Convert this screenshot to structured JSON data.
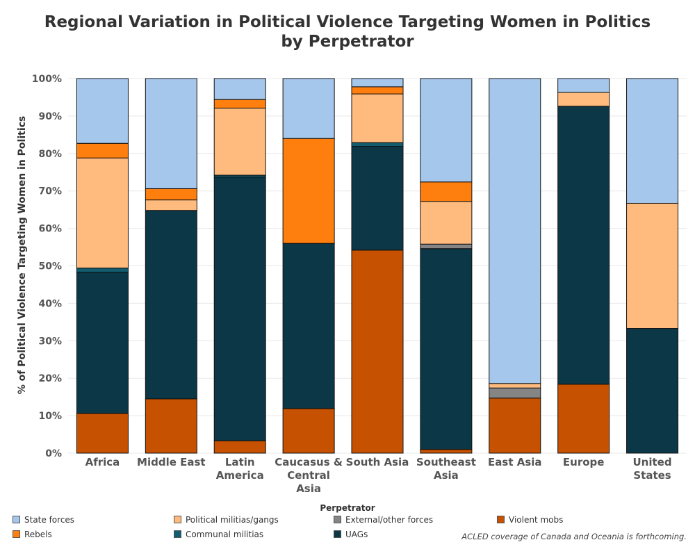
{
  "chart_data": {
    "type": "bar",
    "stacked": true,
    "title": "Regional Variation in Political Violence Targeting Women in Politics\nby Perpetrator",
    "ylabel": "% of Political Violence Targeting Women in Politics",
    "xlabel": "",
    "ylim": [
      0,
      100
    ],
    "yticks": [
      0,
      10,
      20,
      30,
      40,
      50,
      60,
      70,
      80,
      90,
      100
    ],
    "ytick_labels": [
      "0%",
      "10%",
      "20%",
      "30%",
      "40%",
      "50%",
      "60%",
      "70%",
      "80%",
      "90%",
      "100%"
    ],
    "grid": true,
    "legend_title": "Perpetrator",
    "legend_position": "bottom",
    "categories": [
      "Africa",
      "Middle East",
      "Latin America",
      "Caucasus & Central Asia",
      "South Asia",
      "Southeast Asia",
      "East Asia",
      "Europe",
      "United States"
    ],
    "category_label_lines": [
      [
        "Africa"
      ],
      [
        "Middle East"
      ],
      [
        "Latin",
        "America"
      ],
      [
        "Caucasus &",
        "Central",
        "Asia"
      ],
      [
        "South Asia"
      ],
      [
        "Southeast",
        "Asia"
      ],
      [
        "East Asia"
      ],
      [
        "Europe"
      ],
      [
        "United",
        "States"
      ]
    ],
    "series": [
      {
        "name": "Violent mobs",
        "color": "#c65100",
        "values": [
          10.6,
          14.5,
          3.3,
          11.9,
          54.2,
          1.0,
          14.7,
          18.4,
          0
        ]
      },
      {
        "name": "UAGs",
        "color": "#0c3747",
        "values": [
          37.7,
          50.3,
          70.4,
          44.1,
          27.7,
          53.6,
          0,
          74.2,
          33.3
        ]
      },
      {
        "name": "Communal militias",
        "color": "#105e70",
        "values": [
          1.1,
          0,
          0.5,
          0,
          1.0,
          0,
          0,
          0,
          0
        ]
      },
      {
        "name": "External/other forces",
        "color": "#858585",
        "values": [
          0,
          0,
          0,
          0,
          0,
          1.2,
          2.7,
          0,
          0
        ]
      },
      {
        "name": "Political militias/gangs",
        "color": "#ffba7e",
        "values": [
          29.4,
          2.8,
          17.9,
          0,
          13.0,
          11.4,
          1.2,
          3.7,
          33.4
        ]
      },
      {
        "name": "Rebels",
        "color": "#ff7f0e",
        "values": [
          3.9,
          3.0,
          2.3,
          28.0,
          1.9,
          5.2,
          0,
          0,
          0
        ]
      },
      {
        "name": "State forces",
        "color": "#a4c7eb",
        "values": [
          17.3,
          29.4,
          5.6,
          16.0,
          2.2,
          27.6,
          81.4,
          3.7,
          33.3
        ]
      }
    ]
  },
  "legend": {
    "title": "Perpetrator",
    "items": [
      {
        "label": "State forces",
        "color": "#a4c7eb"
      },
      {
        "label": "Political militias/gangs",
        "color": "#ffba7e"
      },
      {
        "label": "External/other forces",
        "color": "#858585"
      },
      {
        "label": "Violent mobs",
        "color": "#c65100"
      },
      {
        "label": "Rebels",
        "color": "#ff7f0e"
      },
      {
        "label": "Communal militias",
        "color": "#105e70"
      },
      {
        "label": "UAGs",
        "color": "#0c3747"
      }
    ]
  },
  "footnote": "ACLED coverage of Canada and Oceania is forthcoming."
}
